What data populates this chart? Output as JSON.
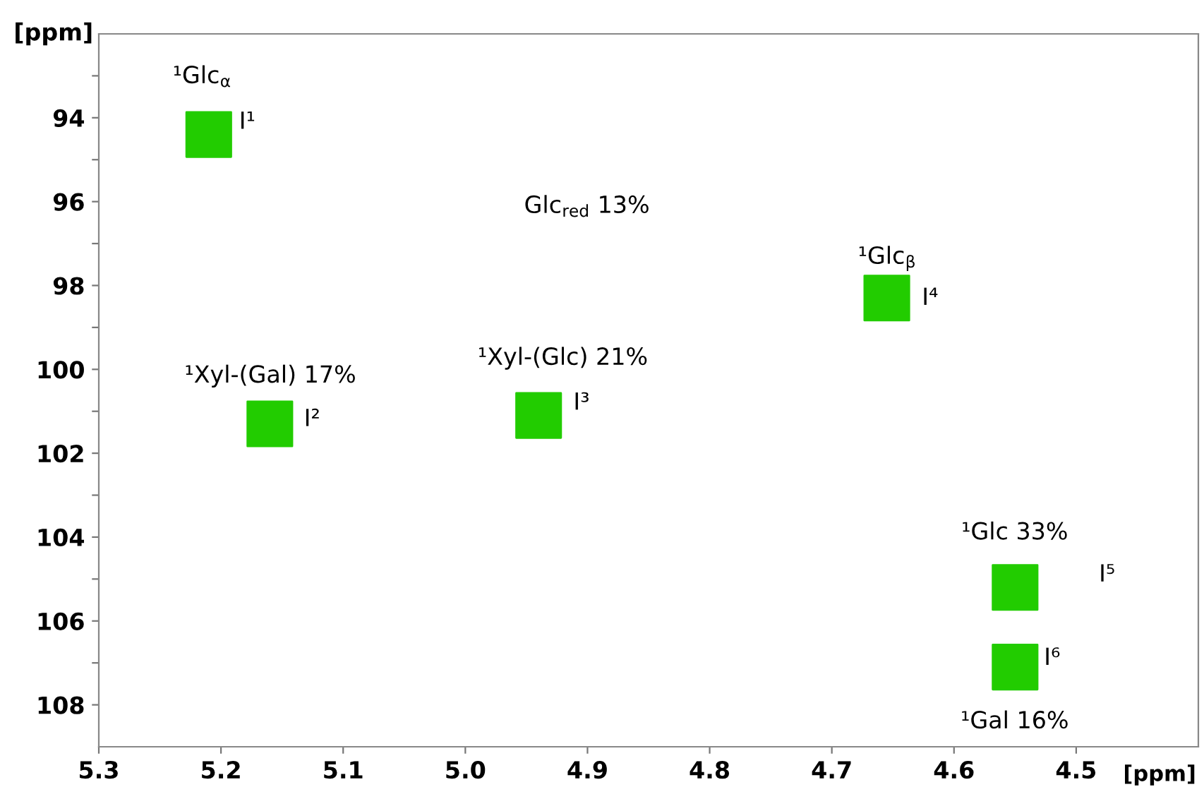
{
  "chart_data": {
    "type": "scatter",
    "xlabel": "[ppm]",
    "ylabel": "[ppm]",
    "xlim": [
      5.3,
      4.4
    ],
    "ylim": [
      109,
      92
    ],
    "xticks": [
      5.3,
      5.2,
      5.1,
      {
        "value": 5.0,
        "label": "5.0"
      },
      4.9,
      4.8,
      4.7,
      4.6,
      4.5
    ],
    "yticks": [
      {
        "value": 93,
        "label": null
      },
      94,
      {
        "value": 95,
        "label": null
      },
      96,
      {
        "value": 97,
        "label": null
      },
      98,
      {
        "value": 99,
        "label": null
      },
      100,
      {
        "value": 101,
        "label": null
      },
      102,
      {
        "value": 103,
        "label": null
      },
      104,
      {
        "value": 105,
        "label": null
      },
      106,
      {
        "value": 107,
        "label": null
      },
      108
    ],
    "grid": false,
    "marker": "square",
    "series": [
      {
        "color": "#22cc00",
        "x": [
          5.21,
          5.16,
          4.94,
          4.655,
          4.55,
          4.55
        ],
        "values": [
          94.4,
          101.3,
          101.1,
          98.3,
          105.2,
          107.1
        ]
      }
    ],
    "annotations": [
      "¹Glc$_{α}$",
      "I¹",
      "Glc$_{red}$ 13%",
      "¹Xyl-(Gal) 17%",
      "I²",
      "¹Xyl-(Glc) 21%",
      "I³",
      "¹Glc$_{β}$",
      "I⁴",
      "¹Glc 33%",
      "I⁵",
      "I⁶",
      "¹Gal 16%"
    ]
  }
}
